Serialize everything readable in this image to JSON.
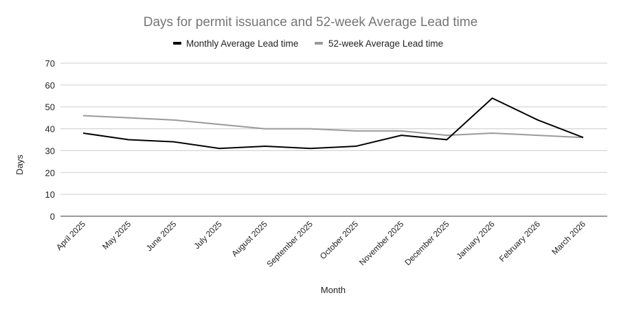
{
  "chart_data": {
    "type": "line",
    "title": "Days for permit issuance and 52-week Average Lead time",
    "xlabel": "Month",
    "ylabel": "Days",
    "ylim": [
      0,
      70
    ],
    "yticks": [
      0,
      10,
      20,
      30,
      40,
      50,
      60,
      70
    ],
    "grid": true,
    "legend_position": "top",
    "categories": [
      "April 2025",
      "May 2025",
      "June 2025",
      "July 2025",
      "August 2025",
      "September 2025",
      "October 2025",
      "November 2025",
      "December 2025",
      "January 2026",
      "February 2026",
      "March 2026"
    ],
    "series": [
      {
        "name": "Monthly Average Lead time",
        "color": "#000000",
        "values": [
          38,
          35,
          34,
          31,
          32,
          31,
          32,
          37,
          35,
          54,
          44,
          36
        ]
      },
      {
        "name": "52-week Average Lead time",
        "color": "#999999",
        "values": [
          46,
          45,
          44,
          42,
          40,
          40,
          39,
          39,
          37,
          38,
          37,
          36
        ]
      }
    ]
  }
}
